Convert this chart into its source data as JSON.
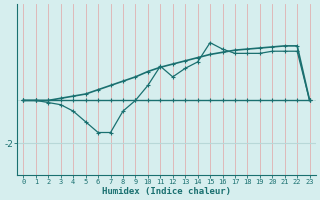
{
  "xlabel": "Humidex (Indice chaleur)",
  "bg_color": "#d6eeee",
  "line_color": "#1a7070",
  "vgrid_color": "#e0b0b0",
  "hgrid_color": "#b8d8d8",
  "x_values": [
    0,
    1,
    2,
    3,
    4,
    5,
    6,
    7,
    8,
    9,
    10,
    11,
    12,
    13,
    14,
    15,
    16,
    17,
    18,
    19,
    20,
    21,
    22,
    23
  ],
  "y_zigzag": [
    0.0,
    0.0,
    -0.1,
    -0.2,
    -0.5,
    -1.0,
    -1.5,
    -1.5,
    -0.5,
    0.0,
    0.7,
    1.6,
    1.1,
    1.5,
    1.8,
    2.7,
    2.4,
    2.2,
    2.2,
    2.2,
    2.3,
    2.3,
    2.3,
    0.0
  ],
  "y_smooth": [
    0.0,
    0.0,
    0.0,
    0.1,
    0.2,
    0.3,
    0.5,
    0.7,
    0.9,
    1.1,
    1.35,
    1.55,
    1.7,
    1.85,
    2.0,
    2.15,
    2.25,
    2.35,
    2.4,
    2.45,
    2.5,
    2.55,
    2.55,
    0.0
  ],
  "y_flat": [
    0.0,
    0.0,
    0.0,
    0.0,
    0.0,
    0.0,
    0.0,
    0.0,
    0.0,
    0.0,
    0.0,
    0.0,
    0.0,
    0.0,
    0.0,
    0.0,
    0.0,
    0.0,
    0.0,
    0.0,
    0.0,
    0.0,
    0.0,
    0.0
  ],
  "ylim": [
    -3.5,
    4.5
  ],
  "yticks": [
    -2
  ],
  "ytick_labels": [
    "-2"
  ],
  "xticks": [
    0,
    1,
    2,
    3,
    4,
    5,
    6,
    7,
    8,
    9,
    10,
    11,
    12,
    13,
    14,
    15,
    16,
    17,
    18,
    19,
    20,
    21,
    22,
    23
  ]
}
